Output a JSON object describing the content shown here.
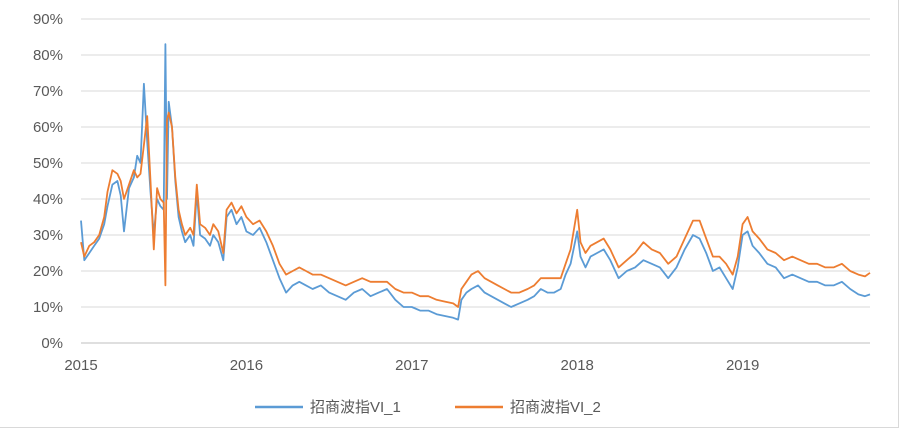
{
  "chart_data": {
    "type": "line",
    "title": "",
    "xlabel": "",
    "ylabel": "",
    "x_ticks": [
      "2015",
      "2016",
      "2017",
      "2018",
      "2019"
    ],
    "y_ticks": [
      "0%",
      "10%",
      "20%",
      "30%",
      "40%",
      "50%",
      "60%",
      "70%",
      "80%",
      "90%"
    ],
    "ylim": [
      0,
      90
    ],
    "xlim": [
      2015.0,
      2019.77
    ],
    "grid": true,
    "legend_position": "bottom",
    "series": [
      {
        "name": "招商波指VI_1",
        "color": "#5b9bd5",
        "points": [
          [
            2015.0,
            34
          ],
          [
            2015.02,
            23
          ],
          [
            2015.05,
            25
          ],
          [
            2015.08,
            27
          ],
          [
            2015.11,
            29
          ],
          [
            2015.14,
            33
          ],
          [
            2015.16,
            38
          ],
          [
            2015.19,
            44
          ],
          [
            2015.22,
            45
          ],
          [
            2015.24,
            41
          ],
          [
            2015.26,
            31
          ],
          [
            2015.29,
            43
          ],
          [
            2015.32,
            46
          ],
          [
            2015.34,
            52
          ],
          [
            2015.36,
            50
          ],
          [
            2015.38,
            72
          ],
          [
            2015.4,
            56
          ],
          [
            2015.42,
            42
          ],
          [
            2015.44,
            30
          ],
          [
            2015.46,
            40
          ],
          [
            2015.48,
            38
          ],
          [
            2015.5,
            37
          ],
          [
            2015.51,
            83
          ],
          [
            2015.52,
            40
          ],
          [
            2015.53,
            67
          ],
          [
            2015.55,
            60
          ],
          [
            2015.57,
            45
          ],
          [
            2015.59,
            35
          ],
          [
            2015.61,
            31
          ],
          [
            2015.63,
            28
          ],
          [
            2015.66,
            30
          ],
          [
            2015.68,
            27
          ],
          [
            2015.7,
            42
          ],
          [
            2015.72,
            30
          ],
          [
            2015.75,
            29
          ],
          [
            2015.78,
            27
          ],
          [
            2015.8,
            30
          ],
          [
            2015.83,
            28
          ],
          [
            2015.86,
            23
          ],
          [
            2015.88,
            35
          ],
          [
            2015.91,
            37
          ],
          [
            2015.94,
            33
          ],
          [
            2015.97,
            35
          ],
          [
            2016.0,
            31
          ],
          [
            2016.04,
            30
          ],
          [
            2016.08,
            32
          ],
          [
            2016.12,
            28
          ],
          [
            2016.16,
            23
          ],
          [
            2016.2,
            18
          ],
          [
            2016.24,
            14
          ],
          [
            2016.28,
            16
          ],
          [
            2016.32,
            17
          ],
          [
            2016.36,
            16
          ],
          [
            2016.4,
            15
          ],
          [
            2016.45,
            16
          ],
          [
            2016.5,
            14
          ],
          [
            2016.55,
            13
          ],
          [
            2016.6,
            12
          ],
          [
            2016.65,
            14
          ],
          [
            2016.7,
            15
          ],
          [
            2016.75,
            13
          ],
          [
            2016.8,
            14
          ],
          [
            2016.85,
            15
          ],
          [
            2016.9,
            12
          ],
          [
            2016.95,
            10
          ],
          [
            2017.0,
            10
          ],
          [
            2017.05,
            9
          ],
          [
            2017.1,
            9
          ],
          [
            2017.15,
            8
          ],
          [
            2017.2,
            7.5
          ],
          [
            2017.25,
            7
          ],
          [
            2017.28,
            6.5
          ],
          [
            2017.3,
            12
          ],
          [
            2017.33,
            14
          ],
          [
            2017.36,
            15
          ],
          [
            2017.4,
            16
          ],
          [
            2017.44,
            14
          ],
          [
            2017.48,
            13
          ],
          [
            2017.52,
            12
          ],
          [
            2017.56,
            11
          ],
          [
            2017.6,
            10
          ],
          [
            2017.65,
            11
          ],
          [
            2017.7,
            12
          ],
          [
            2017.74,
            13
          ],
          [
            2017.78,
            15
          ],
          [
            2017.82,
            14
          ],
          [
            2017.86,
            14
          ],
          [
            2017.9,
            15
          ],
          [
            2017.93,
            19
          ],
          [
            2017.96,
            22
          ],
          [
            2018.0,
            31
          ],
          [
            2018.02,
            24
          ],
          [
            2018.05,
            21
          ],
          [
            2018.08,
            24
          ],
          [
            2018.12,
            25
          ],
          [
            2018.16,
            26
          ],
          [
            2018.2,
            23
          ],
          [
            2018.25,
            18
          ],
          [
            2018.3,
            20
          ],
          [
            2018.35,
            21
          ],
          [
            2018.4,
            23
          ],
          [
            2018.45,
            22
          ],
          [
            2018.5,
            21
          ],
          [
            2018.55,
            18
          ],
          [
            2018.6,
            21
          ],
          [
            2018.65,
            26
          ],
          [
            2018.7,
            30
          ],
          [
            2018.74,
            29
          ],
          [
            2018.78,
            25
          ],
          [
            2018.82,
            20
          ],
          [
            2018.86,
            21
          ],
          [
            2018.9,
            18
          ],
          [
            2018.94,
            15
          ],
          [
            2018.97,
            21
          ],
          [
            2019.0,
            30
          ],
          [
            2019.03,
            31
          ],
          [
            2019.06,
            27
          ],
          [
            2019.1,
            25
          ],
          [
            2019.15,
            22
          ],
          [
            2019.2,
            21
          ],
          [
            2019.25,
            18
          ],
          [
            2019.3,
            19
          ],
          [
            2019.35,
            18
          ],
          [
            2019.4,
            17
          ],
          [
            2019.45,
            17
          ],
          [
            2019.5,
            16
          ],
          [
            2019.55,
            16
          ],
          [
            2019.6,
            17
          ],
          [
            2019.65,
            15
          ],
          [
            2019.7,
            13.5
          ],
          [
            2019.74,
            13
          ],
          [
            2019.77,
            13.5
          ]
        ]
      },
      {
        "name": "招商波指VI_2",
        "color": "#ed7d31",
        "points": [
          [
            2015.0,
            28
          ],
          [
            2015.02,
            24
          ],
          [
            2015.05,
            27
          ],
          [
            2015.08,
            28
          ],
          [
            2015.11,
            30
          ],
          [
            2015.14,
            35
          ],
          [
            2015.16,
            42
          ],
          [
            2015.19,
            48
          ],
          [
            2015.22,
            47
          ],
          [
            2015.24,
            45
          ],
          [
            2015.26,
            40
          ],
          [
            2015.29,
            44
          ],
          [
            2015.32,
            48
          ],
          [
            2015.34,
            46
          ],
          [
            2015.36,
            47
          ],
          [
            2015.38,
            55
          ],
          [
            2015.4,
            63
          ],
          [
            2015.42,
            45
          ],
          [
            2015.44,
            26
          ],
          [
            2015.46,
            43
          ],
          [
            2015.48,
            40
          ],
          [
            2015.5,
            39
          ],
          [
            2015.51,
            16
          ],
          [
            2015.52,
            62
          ],
          [
            2015.53,
            64
          ],
          [
            2015.55,
            60
          ],
          [
            2015.57,
            46
          ],
          [
            2015.59,
            37
          ],
          [
            2015.61,
            33
          ],
          [
            2015.63,
            30
          ],
          [
            2015.66,
            32
          ],
          [
            2015.68,
            30
          ],
          [
            2015.7,
            44
          ],
          [
            2015.72,
            33
          ],
          [
            2015.75,
            32
          ],
          [
            2015.78,
            30
          ],
          [
            2015.8,
            33
          ],
          [
            2015.83,
            31
          ],
          [
            2015.86,
            25
          ],
          [
            2015.88,
            37
          ],
          [
            2015.91,
            39
          ],
          [
            2015.94,
            36
          ],
          [
            2015.97,
            38
          ],
          [
            2016.0,
            35
          ],
          [
            2016.04,
            33
          ],
          [
            2016.08,
            34
          ],
          [
            2016.12,
            31
          ],
          [
            2016.16,
            27
          ],
          [
            2016.2,
            22
          ],
          [
            2016.24,
            19
          ],
          [
            2016.28,
            20
          ],
          [
            2016.32,
            21
          ],
          [
            2016.36,
            20
          ],
          [
            2016.4,
            19
          ],
          [
            2016.45,
            19
          ],
          [
            2016.5,
            18
          ],
          [
            2016.55,
            17
          ],
          [
            2016.6,
            16
          ],
          [
            2016.65,
            17
          ],
          [
            2016.7,
            18
          ],
          [
            2016.75,
            17
          ],
          [
            2016.8,
            17
          ],
          [
            2016.85,
            17
          ],
          [
            2016.9,
            15
          ],
          [
            2016.95,
            14
          ],
          [
            2017.0,
            14
          ],
          [
            2017.05,
            13
          ],
          [
            2017.1,
            13
          ],
          [
            2017.15,
            12
          ],
          [
            2017.2,
            11.5
          ],
          [
            2017.25,
            11
          ],
          [
            2017.28,
            10
          ],
          [
            2017.3,
            15
          ],
          [
            2017.33,
            17
          ],
          [
            2017.36,
            19
          ],
          [
            2017.4,
            20
          ],
          [
            2017.44,
            18
          ],
          [
            2017.48,
            17
          ],
          [
            2017.52,
            16
          ],
          [
            2017.56,
            15
          ],
          [
            2017.6,
            14
          ],
          [
            2017.65,
            14
          ],
          [
            2017.7,
            15
          ],
          [
            2017.74,
            16
          ],
          [
            2017.78,
            18
          ],
          [
            2017.82,
            18
          ],
          [
            2017.86,
            18
          ],
          [
            2017.9,
            18
          ],
          [
            2017.93,
            22
          ],
          [
            2017.96,
            26
          ],
          [
            2018.0,
            37
          ],
          [
            2018.02,
            28
          ],
          [
            2018.05,
            25
          ],
          [
            2018.08,
            27
          ],
          [
            2018.12,
            28
          ],
          [
            2018.16,
            29
          ],
          [
            2018.2,
            26
          ],
          [
            2018.25,
            21
          ],
          [
            2018.3,
            23
          ],
          [
            2018.35,
            25
          ],
          [
            2018.4,
            28
          ],
          [
            2018.45,
            26
          ],
          [
            2018.5,
            25
          ],
          [
            2018.55,
            22
          ],
          [
            2018.6,
            24
          ],
          [
            2018.65,
            29
          ],
          [
            2018.7,
            34
          ],
          [
            2018.74,
            34
          ],
          [
            2018.78,
            29
          ],
          [
            2018.82,
            24
          ],
          [
            2018.86,
            24
          ],
          [
            2018.9,
            22
          ],
          [
            2018.94,
            19
          ],
          [
            2018.97,
            24
          ],
          [
            2019.0,
            33
          ],
          [
            2019.03,
            35
          ],
          [
            2019.06,
            31
          ],
          [
            2019.1,
            29
          ],
          [
            2019.15,
            26
          ],
          [
            2019.2,
            25
          ],
          [
            2019.25,
            23
          ],
          [
            2019.3,
            24
          ],
          [
            2019.35,
            23
          ],
          [
            2019.4,
            22
          ],
          [
            2019.45,
            22
          ],
          [
            2019.5,
            21
          ],
          [
            2019.55,
            21
          ],
          [
            2019.6,
            22
          ],
          [
            2019.65,
            20
          ],
          [
            2019.7,
            19
          ],
          [
            2019.74,
            18.5
          ],
          [
            2019.77,
            19.5
          ]
        ]
      }
    ]
  }
}
